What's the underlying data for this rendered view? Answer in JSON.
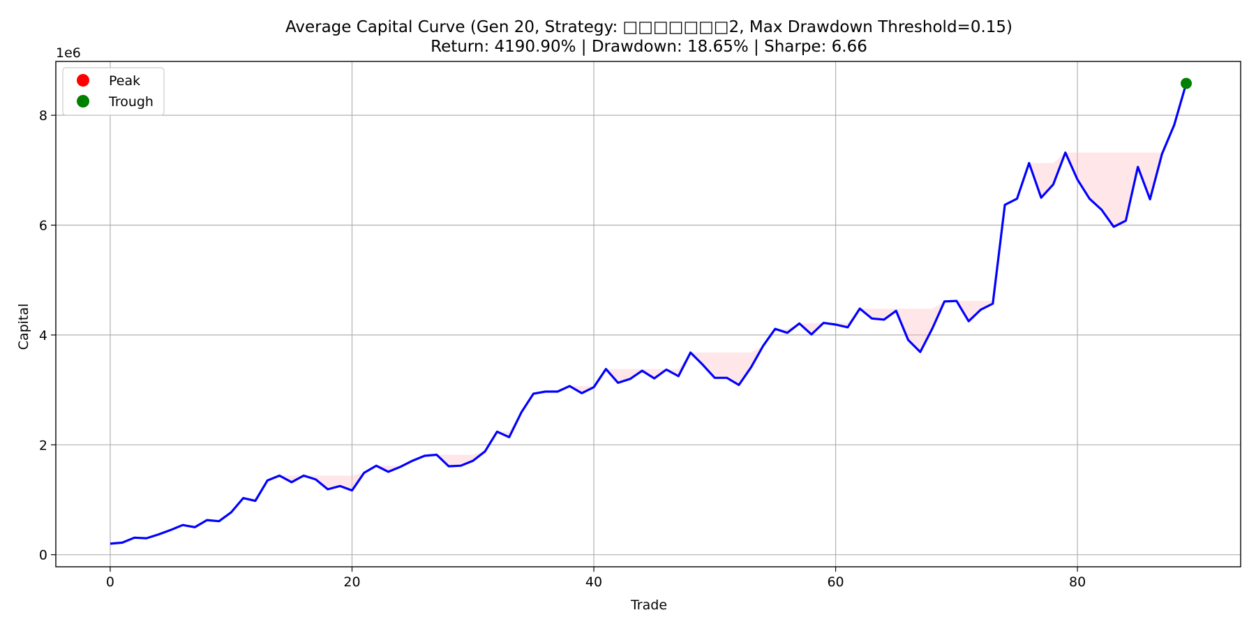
{
  "chart_data": {
    "type": "line",
    "title": "Average Capital Curve (Gen 20, Strategy: □□□□□□□2, Max Drawdown Threshold=0.15)",
    "subtitle": "Return: 4190.90% | Drawdown: 18.65% | Sharpe: 6.66",
    "xlabel": "Trade",
    "ylabel": "Capital",
    "y_offset_label": "1e6",
    "xlim": [
      -4.5,
      93.5
    ],
    "ylim": [
      -0.22,
      8.98
    ],
    "xticks": [
      0,
      20,
      40,
      60,
      80
    ],
    "xtick_labels": [
      "0",
      "20",
      "40",
      "60",
      "80"
    ],
    "yticks": [
      0,
      2,
      4,
      6,
      8
    ],
    "ytick_labels": [
      "0",
      "2",
      "4",
      "6",
      "8"
    ],
    "grid": true,
    "legend_placement": "top-left",
    "legend": [
      {
        "label": "Peak",
        "color": "#ff0000"
      },
      {
        "label": "Trough",
        "color": "#008000"
      }
    ],
    "series": [
      {
        "color": "#0000ff",
        "y_unit_note": "values in units of 1e6",
        "x": [
          0,
          1,
          2,
          3,
          4,
          5,
          6,
          7,
          8,
          9,
          10,
          11,
          12,
          13,
          14,
          15,
          16,
          17,
          18,
          19,
          20,
          21,
          22,
          23,
          24,
          25,
          26,
          27,
          28,
          29,
          30,
          31,
          32,
          33,
          34,
          35,
          36,
          37,
          38,
          39,
          40,
          41,
          42,
          43,
          44,
          45,
          46,
          47,
          48,
          49,
          50,
          51,
          52,
          53,
          54,
          55,
          56,
          57,
          58,
          59,
          60,
          61,
          62,
          63,
          64,
          65,
          66,
          67,
          68,
          69,
          70,
          71,
          72,
          73,
          74,
          75,
          76,
          77,
          78,
          79,
          80,
          81,
          82,
          83,
          84,
          85,
          86,
          87,
          88,
          89
        ],
        "values": [
          0.2,
          0.22,
          0.31,
          0.3,
          0.37,
          0.45,
          0.54,
          0.5,
          0.63,
          0.61,
          0.77,
          1.03,
          0.98,
          1.35,
          1.44,
          1.32,
          1.44,
          1.37,
          1.19,
          1.25,
          1.17,
          1.49,
          1.62,
          1.51,
          1.6,
          1.71,
          1.8,
          1.82,
          1.61,
          1.62,
          1.71,
          1.88,
          2.24,
          2.14,
          2.59,
          2.93,
          2.97,
          2.97,
          3.07,
          2.94,
          3.05,
          3.38,
          3.13,
          3.2,
          3.35,
          3.21,
          3.37,
          3.25,
          3.68,
          3.46,
          3.22,
          3.22,
          3.09,
          3.41,
          3.8,
          4.11,
          4.04,
          4.21,
          4.01,
          4.22,
          4.19,
          4.14,
          4.48,
          4.3,
          4.28,
          4.44,
          3.91,
          3.69,
          4.12,
          4.61,
          4.62,
          4.25,
          4.46,
          4.57,
          6.37,
          6.48,
          7.13,
          6.5,
          6.74,
          7.32,
          6.83,
          6.48,
          6.28,
          5.97,
          6.08,
          7.06,
          6.47,
          7.3,
          7.82,
          8.58
        ]
      }
    ],
    "drawdown_fill_color": "#ffb6c1",
    "markers": [
      {
        "label": "Trough",
        "x": 89,
        "y": 8.58,
        "color": "#008000"
      }
    ]
  }
}
